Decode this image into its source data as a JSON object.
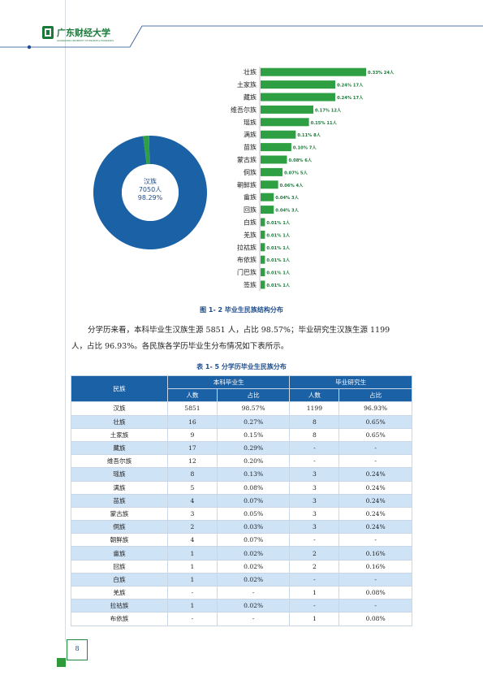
{
  "header": {
    "logo_text": "广东财经大学",
    "logo_subtitle": "GUANGDONG UNIVERSITY OF FINANCE & ECONOMICS"
  },
  "donut": {
    "center_label": "汉族",
    "center_count": "7050人",
    "center_pct": "98.29%",
    "fraction": 0.9829
  },
  "bars": [
    {
      "name": "壮族",
      "label": "0.33% 24人",
      "value": 24
    },
    {
      "name": "土家族",
      "label": "0.24% 17人",
      "value": 17
    },
    {
      "name": "藏族",
      "label": "0.24% 17人",
      "value": 17
    },
    {
      "name": "维吾尔族",
      "label": "0.17% 12人",
      "value": 12
    },
    {
      "name": "瑶族",
      "label": "0.15% 11人",
      "value": 11
    },
    {
      "name": "满族",
      "label": "0.11% 8人",
      "value": 8
    },
    {
      "name": "苗族",
      "label": "0.10% 7人",
      "value": 7
    },
    {
      "name": "蒙古族",
      "label": "0.08% 6人",
      "value": 6
    },
    {
      "name": "侗族",
      "label": "0.07% 5人",
      "value": 5
    },
    {
      "name": "朝鲜族",
      "label": "0.06% 4人",
      "value": 4
    },
    {
      "name": "畲族",
      "label": "0.04% 3人",
      "value": 3
    },
    {
      "name": "回族",
      "label": "0.04% 3人",
      "value": 3
    },
    {
      "name": "白族",
      "label": "0.01% 1人",
      "value": 1
    },
    {
      "name": "羌族",
      "label": "0.01% 1人",
      "value": 1
    },
    {
      "name": "拉祜族",
      "label": "0.01% 1人",
      "value": 1
    },
    {
      "name": "布依族",
      "label": "0.01% 1人",
      "value": 1
    },
    {
      "name": "门巴族",
      "label": "0.01% 1人",
      "value": 1
    },
    {
      "name": "签族",
      "label": "0.01% 1人",
      "value": 1
    }
  ],
  "figure_caption": "图 1- 2  毕业生民族结构分布",
  "paragraph": {
    "line1": "分学历来看，本科毕业生汉族生源 5851 人，占比 98.57%；毕业研究生汉族生源 1199",
    "line2": "人，占比 96.93%。各民族各学历毕业生分布情况如下表所示。"
  },
  "table_caption": "表 1- 5  分学历毕业生民族分布",
  "table": {
    "h_minzu": "民族",
    "h_bk": "本科毕业生",
    "h_yjs": "毕业研究生",
    "h_rs1": "人数",
    "h_zb1": "占比",
    "h_rs2": "人数",
    "h_zb2": "占比",
    "rows": [
      [
        "汉族",
        "5851",
        "98.57%",
        "1199",
        "96.93%"
      ],
      [
        "壮族",
        "16",
        "0.27%",
        "8",
        "0.65%"
      ],
      [
        "土家族",
        "9",
        "0.15%",
        "8",
        "0.65%"
      ],
      [
        "藏族",
        "17",
        "0.29%",
        "-",
        "-"
      ],
      [
        "维吾尔族",
        "12",
        "0.20%",
        "-",
        "-"
      ],
      [
        "瑶族",
        "8",
        "0.13%",
        "3",
        "0.24%"
      ],
      [
        "满族",
        "5",
        "0.08%",
        "3",
        "0.24%"
      ],
      [
        "苗族",
        "4",
        "0.07%",
        "3",
        "0.24%"
      ],
      [
        "蒙古族",
        "3",
        "0.05%",
        "3",
        "0.24%"
      ],
      [
        "侗族",
        "2",
        "0.03%",
        "3",
        "0.24%"
      ],
      [
        "朝鲜族",
        "4",
        "0.07%",
        "-",
        "-"
      ],
      [
        "畲族",
        "1",
        "0.02%",
        "2",
        "0.16%"
      ],
      [
        "回族",
        "1",
        "0.02%",
        "2",
        "0.16%"
      ],
      [
        "白族",
        "1",
        "0.02%",
        "-",
        "-"
      ],
      [
        "羌族",
        "-",
        "-",
        "1",
        "0.08%"
      ],
      [
        "拉祜族",
        "1",
        "0.02%",
        "-",
        "-"
      ],
      [
        "布依族",
        "-",
        "-",
        "1",
        "0.08%"
      ]
    ]
  },
  "page_number": "8",
  "colors": {
    "bar": "#2ea043",
    "donut_main": "#1b61a6",
    "donut_minor": "#2ea043",
    "header_green": "#1b7a3a",
    "header_blue": "#1f4e8c"
  }
}
